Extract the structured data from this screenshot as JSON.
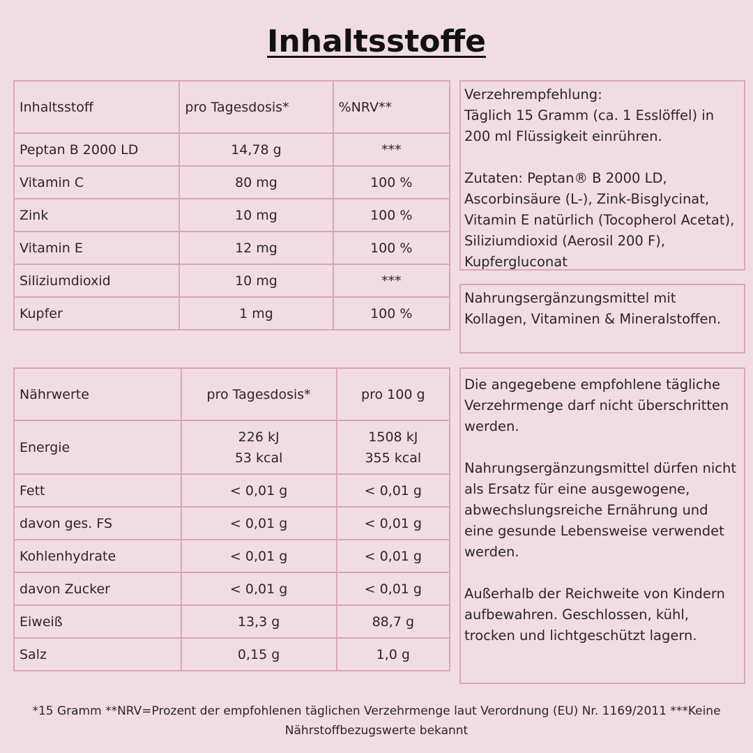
{
  "title": "Inhaltsstoffe",
  "ingredients": {
    "headers": [
      "Inhaltsstoff",
      "pro Tagesdosis*",
      "%NRV**"
    ],
    "rows": [
      [
        "Peptan B 2000 LD",
        "14,78 g",
        "***"
      ],
      [
        "Vitamin C",
        "80 mg",
        "100 %"
      ],
      [
        "Zink",
        "10 mg",
        "100 %"
      ],
      [
        "Vitamin E",
        "12 mg",
        "100 %"
      ],
      [
        "Siliziumdioxid",
        "10 mg",
        "***"
      ],
      [
        "Kupfer",
        "1 mg",
        "100 %"
      ]
    ]
  },
  "nutrition": {
    "headers": [
      "Nährwerte",
      "pro Tagesdosis*",
      "pro 100 g"
    ],
    "rows": [
      [
        "Energie",
        "226 kJ\n53 kcal",
        "1508 kJ\n355 kcal"
      ],
      [
        "Fett",
        "< 0,01 g",
        "< 0,01 g"
      ],
      [
        "davon ges. FS",
        "< 0,01 g",
        "< 0,01 g"
      ],
      [
        "Kohlenhydrate",
        "< 0,01 g",
        "< 0,01 g"
      ],
      [
        "davon Zucker",
        "< 0,01 g",
        "< 0,01 g"
      ],
      [
        "Eiweiß",
        "13,3 g",
        "88,7 g"
      ],
      [
        "Salz",
        "0,15 g",
        "1,0 g"
      ]
    ]
  },
  "boxes": [
    "Verzehrempfehlung:\nTäglich 15 Gramm (ca. 1 Esslöffel) in 200 ml Flüssigkeit einrühren.\n\nZutaten: Peptan® B 2000 LD, Ascorbinsäure (L-), Zink-Bisglycinat, Vitamin E natürlich (Tocopherol Acetat), Siliziumdioxid (Aerosil 200 F), Kupfergluconat",
    "Nahrungsergänzungsmittel mit Kollagen, Vitaminen & Mineralstoffen.",
    "Die angegebene empfohlene tägliche Verzehrmenge darf nicht überschritten werden.\n\nNahrungsergänzungsmittel dürfen nicht als Ersatz für eine ausgewogene, abwechslungsreiche Ernährung und eine gesunde Lebensweise verwendet werden.\n\nAußerhalb der Reichweite von Kindern aufbewahren. Geschlossen, kühl, trocken und lichtgeschützt lagern."
  ],
  "footnote": "*15 Gramm **NRV=Prozent der empfohlenen täglichen Verzehrmenge laut Verordnung (EU) Nr. 1169/2011 ***Keine Nährstoffbezugswerte bekannt"
}
